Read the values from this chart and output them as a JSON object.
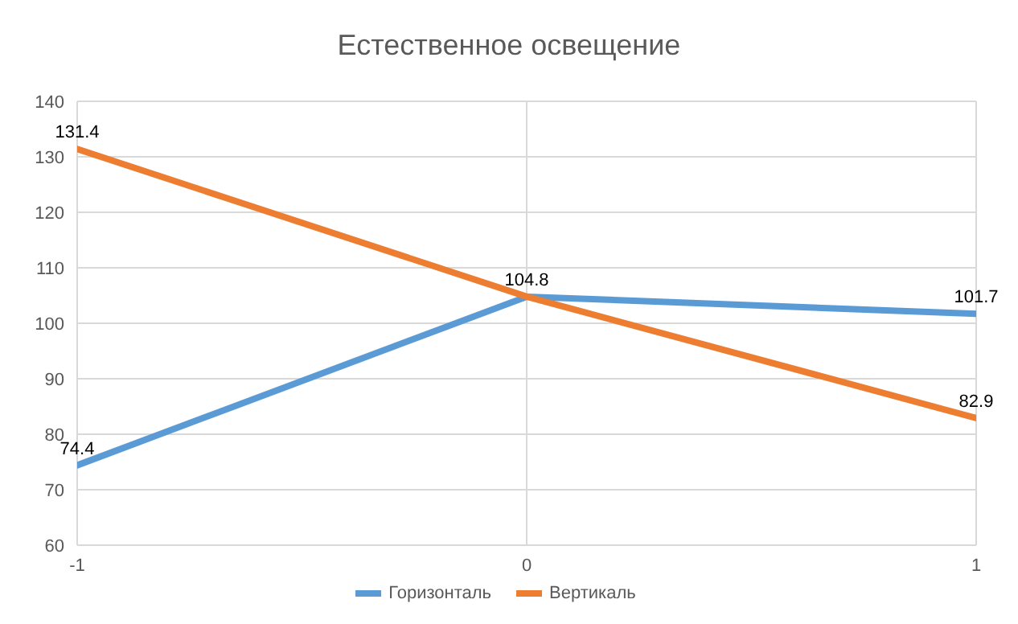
{
  "chart_data": {
    "type": "line",
    "title": "Естественное освещение",
    "x": [
      -1,
      0,
      1
    ],
    "series": [
      {
        "name": "Горизонталь",
        "color": "#5b9bd5",
        "values": [
          74.4,
          104.8,
          101.7
        ],
        "value_labels": [
          "74.4",
          "104.8",
          "101.7"
        ]
      },
      {
        "name": "Вертикаль",
        "color": "#ed7d31",
        "values": [
          131.4,
          104.8,
          82.9
        ],
        "value_labels": [
          "131.4",
          null,
          "82.9"
        ]
      }
    ],
    "xlim": [
      -1,
      1
    ],
    "xticks": [
      -1,
      0,
      1
    ],
    "ylim": [
      60,
      140
    ],
    "yticks": [
      60,
      70,
      80,
      90,
      100,
      110,
      120,
      130,
      140
    ],
    "grid": true,
    "legend": "bottom",
    "marker": "none",
    "line_style": "solid"
  }
}
